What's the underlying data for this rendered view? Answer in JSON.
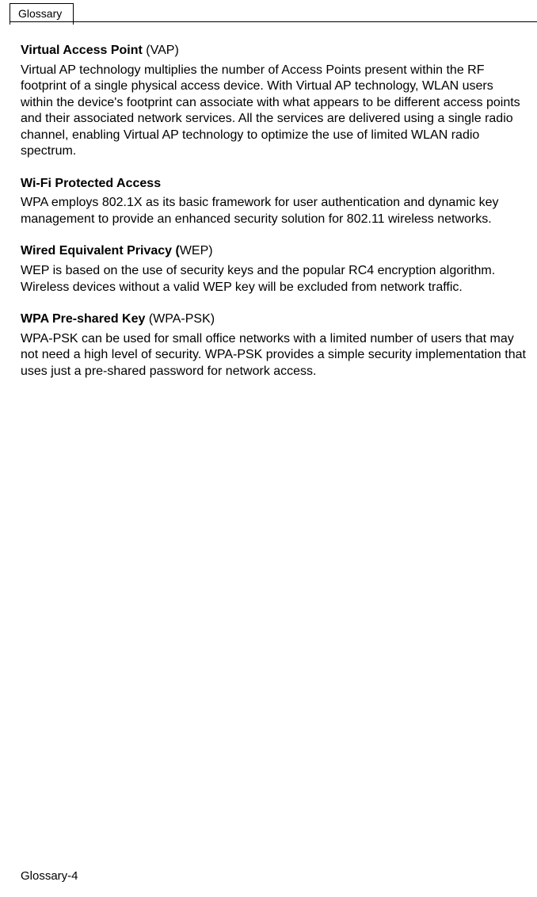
{
  "header": {
    "tab": "Glossary"
  },
  "entries": [
    {
      "titleBold": "Virtual Access Point",
      "titleRest": " (VAP)",
      "body": "Virtual AP technology multiplies the number of Access Points present within the RF footprint of a single physical access device. With Virtual AP technology, WLAN users within the device's footprint can associate with what appears to be different access points and their associated network services. All the services are delivered using a single radio channel, enabling Virtual AP technology to optimize the use of limited WLAN radio spectrum."
    },
    {
      "titleBold": "Wi-Fi Protected Access",
      "titleRest": "",
      "body": "WPA employs 802.1X as its basic framework for user authentication and dynamic key management to provide an enhanced security solution for 802.11 wireless networks."
    },
    {
      "titleBold": "Wired Equivalent Privacy (",
      "titleRest": "WEP)",
      "body": "WEP is based on the use of security keys and the popular RC4 encryption algorithm. Wireless devices without a valid WEP key will be excluded from network traffic."
    },
    {
      "titleBold": "WPA Pre-shared Key",
      "titleRest": " (WPA-PSK)",
      "body": "WPA-PSK can be used for small office networks with a limited number of users that may not need a high level of security. WPA-PSK provides a simple security implementation that uses just a pre-shared password for network access."
    }
  ],
  "footer": {
    "pageLabel": "Glossary-4"
  }
}
